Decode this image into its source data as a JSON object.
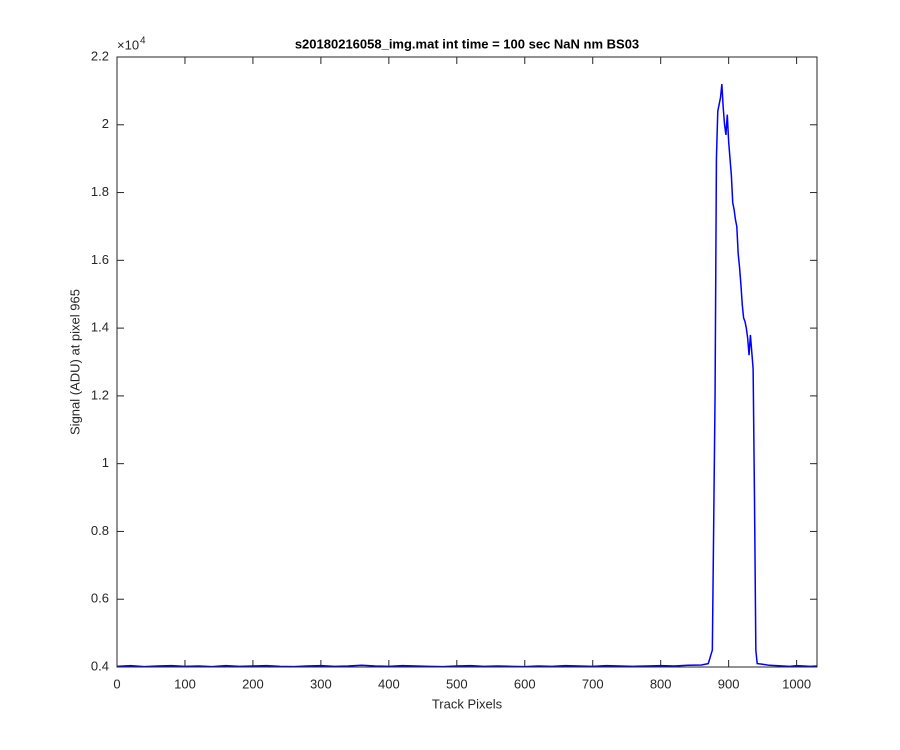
{
  "chart_data": {
    "type": "line",
    "title": "s20180216058_img.mat int time = 100 sec  NaN nm BS03",
    "xlabel": "Track Pixels",
    "ylabel": "Signal (ADU) at pixel 965",
    "y_multiplier": {
      "base": "×10",
      "exponent": "4"
    },
    "color": "#0000ff",
    "x": [
      0,
      20,
      40,
      60,
      80,
      100,
      120,
      140,
      160,
      180,
      200,
      220,
      240,
      260,
      280,
      300,
      320,
      340,
      360,
      380,
      400,
      420,
      440,
      460,
      480,
      500,
      520,
      540,
      560,
      580,
      600,
      620,
      640,
      660,
      680,
      700,
      720,
      740,
      760,
      780,
      800,
      820,
      840,
      860,
      870,
      876,
      880,
      882,
      884,
      886,
      888,
      890,
      892,
      894,
      896,
      898,
      900,
      902,
      904,
      906,
      908,
      910,
      912,
      914,
      916,
      918,
      920,
      922,
      924,
      926,
      928,
      930,
      932,
      934,
      936,
      938,
      940,
      942,
      950,
      960,
      970,
      980,
      990,
      1000,
      1010,
      1020,
      1030
    ],
    "values": [
      0.402,
      0.404,
      0.401,
      0.403,
      0.404,
      0.402,
      0.403,
      0.401,
      0.404,
      0.402,
      0.403,
      0.404,
      0.402,
      0.401,
      0.403,
      0.404,
      0.402,
      0.403,
      0.405,
      0.403,
      0.402,
      0.404,
      0.403,
      0.402,
      0.401,
      0.403,
      0.404,
      0.402,
      0.403,
      0.402,
      0.401,
      0.403,
      0.402,
      0.404,
      0.403,
      0.402,
      0.404,
      0.403,
      0.402,
      0.403,
      0.404,
      0.403,
      0.405,
      0.406,
      0.41,
      0.45,
      1.2,
      1.9,
      2.04,
      2.06,
      2.08,
      2.12,
      2.05,
      2.0,
      1.97,
      2.03,
      1.95,
      1.9,
      1.85,
      1.77,
      1.75,
      1.72,
      1.7,
      1.62,
      1.58,
      1.53,
      1.47,
      1.43,
      1.42,
      1.4,
      1.37,
      1.32,
      1.38,
      1.33,
      1.28,
      0.9,
      0.45,
      0.41,
      0.408,
      0.405,
      0.404,
      0.403,
      0.402,
      0.404,
      0.403,
      0.402,
      0.403
    ],
    "xlim": [
      0,
      1030
    ],
    "ylim": [
      0.4,
      2.2
    ],
    "xticks": [
      0,
      100,
      200,
      300,
      400,
      500,
      600,
      700,
      800,
      900,
      1000
    ],
    "yticks": [
      0.4,
      0.6,
      0.8,
      1,
      1.2,
      1.4,
      1.6,
      1.8,
      2,
      2.2
    ]
  }
}
